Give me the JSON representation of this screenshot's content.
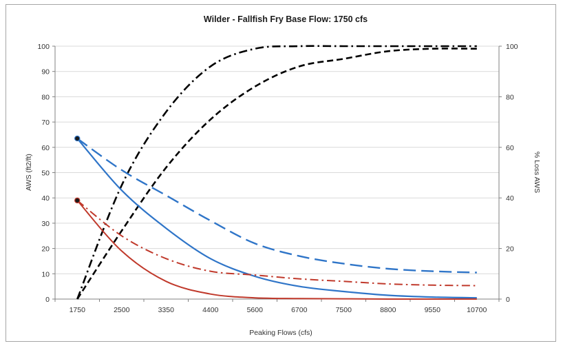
{
  "chart_data": {
    "type": "line",
    "title": "Wilder -  Fallfish Fry   Base Flow: 1750 cfs",
    "xlabel": "Peaking Flows (cfs)",
    "ylabel": "AWS (ft2/ft)",
    "y2label": "% Loss AWS",
    "categories": [
      "1750",
      "2500",
      "3350",
      "4400",
      "5600",
      "6700",
      "7500",
      "8800",
      "9550",
      "10700"
    ],
    "ylim": [
      0,
      100
    ],
    "yticks": [
      "0",
      "10",
      "20",
      "30",
      "40",
      "50",
      "60",
      "70",
      "80",
      "90",
      "100"
    ],
    "y2lim": [
      0,
      100
    ],
    "y2ticks": [
      "0",
      "20",
      "40",
      "60",
      "80",
      "100"
    ],
    "grid": true,
    "legend": "none",
    "series": [
      {
        "axis": "y2",
        "color": "#000000",
        "dash": "dashdot",
        "width": 2.6,
        "values": [
          0,
          45,
          74,
          92,
          99,
          100,
          100,
          100,
          100,
          100
        ]
      },
      {
        "axis": "y2",
        "color": "#000000",
        "dash": "dash",
        "width": 2.6,
        "values": [
          0,
          27,
          52,
          71,
          84,
          92,
          95,
          98,
          99,
          99
        ]
      },
      {
        "axis": "y",
        "color": "#2f75c8",
        "dash": "solid",
        "width": 2.2,
        "marker_first": true,
        "values": [
          63.5,
          43,
          28,
          16,
          9,
          5,
          3,
          1.5,
          0.8,
          0.5
        ]
      },
      {
        "axis": "y2",
        "color": "#2f75c8",
        "dash": "longdash",
        "width": 2.4,
        "values": [
          63.5,
          51,
          41,
          31,
          22,
          17,
          14,
          12,
          11,
          10.5
        ]
      },
      {
        "axis": "y",
        "color": "#c0392b",
        "dash": "solid",
        "width": 2.0,
        "marker_first": true,
        "values": [
          39,
          19,
          7,
          2,
          0.5,
          0.2,
          0.1,
          0,
          0,
          0
        ]
      },
      {
        "axis": "y2",
        "color": "#c0392b",
        "dash": "dashdot",
        "width": 2.0,
        "values": [
          39,
          25,
          16,
          11,
          9.5,
          8,
          7,
          6,
          5.5,
          5.3
        ]
      }
    ]
  }
}
